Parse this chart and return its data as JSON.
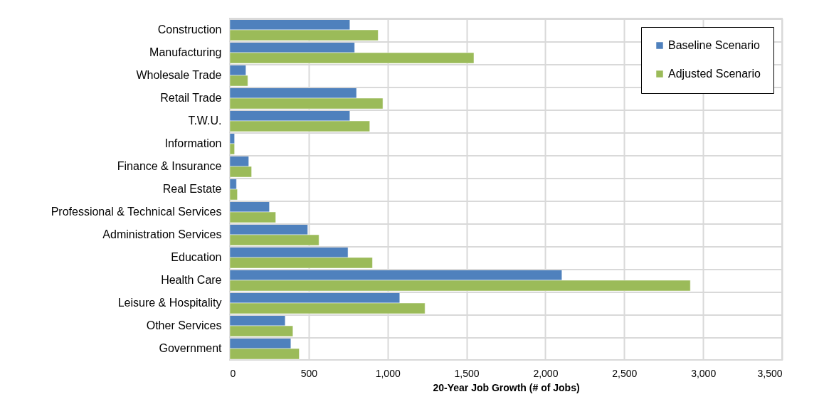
{
  "chart_data": {
    "type": "bar",
    "orientation": "horizontal",
    "xlabel": "20-Year Job Growth (# of Jobs)",
    "categories": [
      "Construction",
      "Manufacturing",
      "Wholesale Trade",
      "Retail Trade",
      "T.W.U.",
      "Information",
      "Finance & Insurance",
      "Real Estate",
      "Professional & Technical Services",
      "Administration Services",
      "Education",
      "Health Care",
      "Leisure & Hospitality",
      "Other Services",
      "Government"
    ],
    "series": [
      {
        "name": "Baseline Scenario",
        "color": "#4f81bd",
        "values": [
          761,
          791,
          102,
          803,
          761,
          30,
          120,
          42,
          251,
          494,
          749,
          2105,
          1077,
          351,
          387
        ]
      },
      {
        "name": "Adjusted Scenario",
        "color": "#9bbb59",
        "values": [
          940,
          1547,
          114,
          970,
          887,
          30,
          138,
          48,
          291,
          565,
          904,
          2919,
          1237,
          400,
          440
        ]
      }
    ],
    "xlim": [
      0,
      3500
    ],
    "xticks": [
      0,
      {
        "value": 500,
        "label": "500"
      },
      {
        "value": 1000,
        "label": "1,000"
      },
      {
        "value": 1500,
        "label": "1,500"
      },
      {
        "value": 2000,
        "label": "2,000"
      },
      {
        "value": 2500,
        "label": "2,500"
      },
      {
        "value": 3000,
        "label": "3,000"
      },
      {
        "value": 3500,
        "label": "3,500"
      }
    ],
    "grid": true,
    "legend": "top right"
  }
}
